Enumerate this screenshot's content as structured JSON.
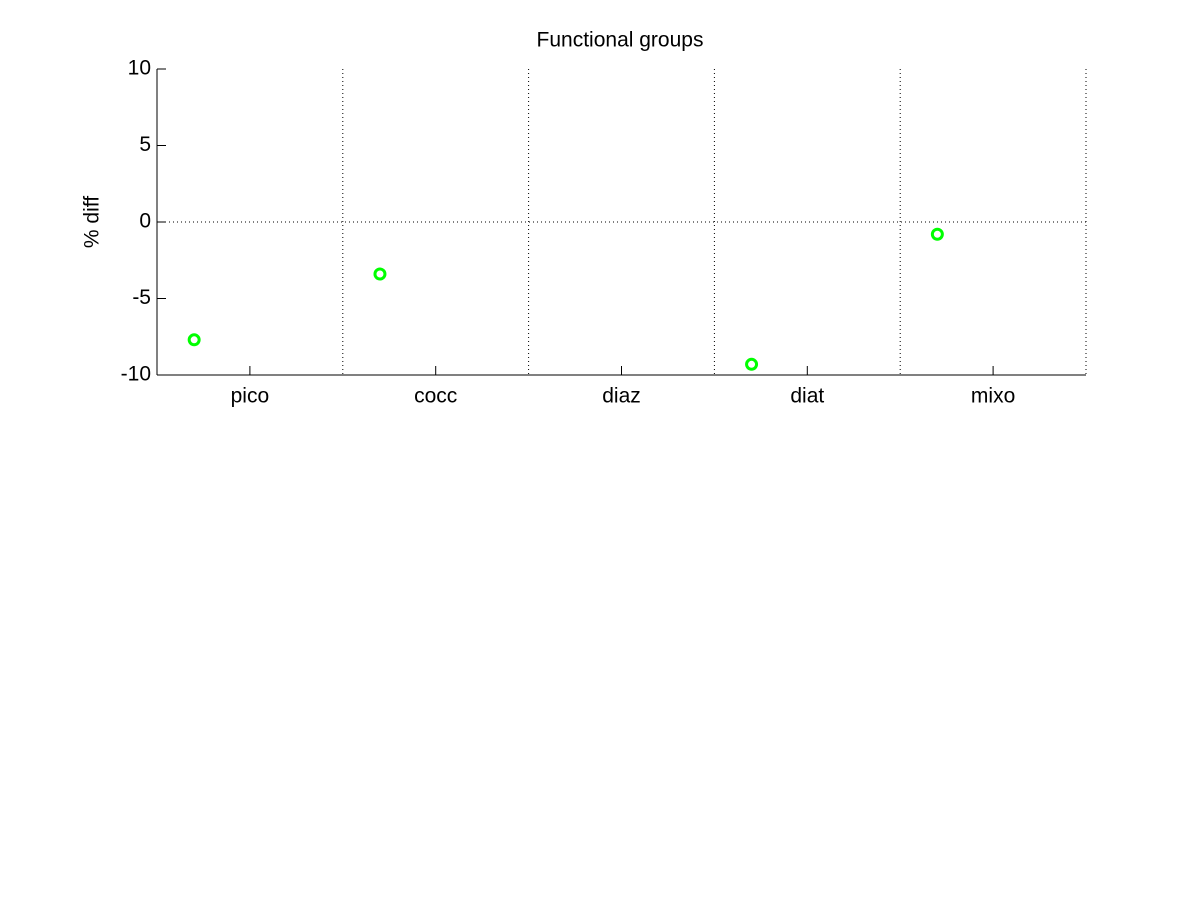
{
  "chart_data": {
    "type": "scatter",
    "title": "Functional groups",
    "y_label": "% diff",
    "categories": [
      "pico",
      "cocc",
      "diaz",
      "diat",
      "mixo"
    ],
    "values": [
      -7.7,
      -3.4,
      null,
      -9.3,
      -0.8
    ],
    "color": "#00ff00",
    "ylim": [
      -10,
      10
    ],
    "yticks": [
      -10,
      -5,
      0,
      5,
      10
    ],
    "zero_line": true,
    "category_separators": true
  }
}
